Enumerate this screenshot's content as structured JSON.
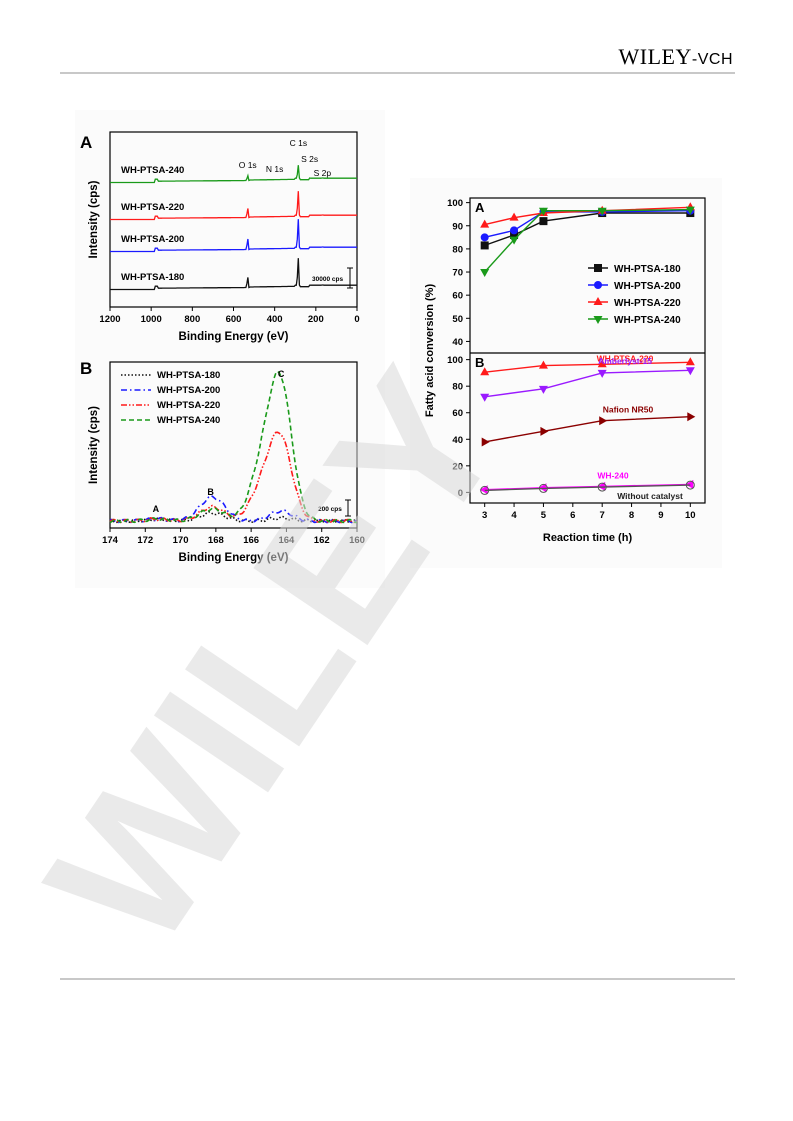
{
  "header": {
    "brand_main": "WILEY",
    "brand_sub": "-VCH"
  },
  "watermark": {
    "text": "WILEY",
    "color": "#d9d9d9"
  },
  "figures": {
    "xps_survey": {
      "panel_letter": "A"
    },
    "xps_s2p": {
      "panel_letter": "B"
    },
    "conversion": {
      "panel_letter": "A"
    },
    "catalysts": {
      "panel_letter": "B"
    }
  },
  "chart_data": [
    {
      "id": "xps_survey",
      "type": "line",
      "xlabel": "Binding Energy (eV)",
      "ylabel": "Intensity (cps)",
      "xlim": [
        1200,
        0
      ],
      "xticks": [
        1200,
        1000,
        800,
        600,
        400,
        200,
        0
      ],
      "reversed_x": true,
      "series": [
        {
          "name": "WH-PTSA-240",
          "color": "#1a9a1a"
        },
        {
          "name": "WH-PTSA-220",
          "color": "#ff1a1a"
        },
        {
          "name": "WH-PTSA-200",
          "color": "#1a1aff"
        },
        {
          "name": "WH-PTSA-180",
          "color": "#111111"
        }
      ],
      "peak_labels": [
        {
          "text": "O 1s",
          "x": 531
        },
        {
          "text": "N 1s",
          "x": 400
        },
        {
          "text": "C 1s",
          "x": 285
        },
        {
          "text": "S 2s",
          "x": 230
        },
        {
          "text": "S 2p",
          "x": 168
        }
      ],
      "scale_bar": "30000 cps"
    },
    {
      "id": "xps_s2p",
      "type": "line",
      "xlabel": "Binding Energy (eV)",
      "ylabel": "Intensity (cps)",
      "xlim": [
        174,
        160
      ],
      "xticks": [
        174,
        172,
        170,
        168,
        166,
        164,
        162,
        160
      ],
      "reversed_x": true,
      "series": [
        {
          "name": "WH-PTSA-180",
          "color": "#111111",
          "dash": "dot"
        },
        {
          "name": "WH-PTSA-200",
          "color": "#1a1aff",
          "dash": "dashdot"
        },
        {
          "name": "WH-PTSA-220",
          "color": "#ff1a1a",
          "dash": "dashdotdot"
        },
        {
          "name": "WH-PTSA-240",
          "color": "#1a9a1a",
          "dash": "dash"
        }
      ],
      "peak_labels": [
        {
          "text": "A",
          "x": 171.4
        },
        {
          "text": "B",
          "x": 168.3
        },
        {
          "text": "C",
          "x": 164.3
        }
      ],
      "scale_bar": "200 cps",
      "legend": "top-left"
    },
    {
      "id": "conversion",
      "type": "line",
      "ylabel": "Fatty acid conversion (%)",
      "ylim": [
        35,
        102
      ],
      "yticks": [
        40,
        50,
        60,
        70,
        80,
        90,
        100
      ],
      "x": [
        3,
        5,
        7,
        10
      ],
      "x_extra": [
        3,
        4,
        5,
        7,
        10
      ],
      "series": [
        {
          "name": "WH-PTSA-180",
          "color": "#111111",
          "marker": "square",
          "x": [
            3,
            4,
            5,
            7,
            10
          ],
          "values": [
            81.5,
            86,
            92,
            95.5,
            95.5
          ]
        },
        {
          "name": "WH-PTSA-200",
          "color": "#1a1aff",
          "marker": "circle",
          "x": [
            3,
            4,
            5,
            7,
            10
          ],
          "values": [
            85,
            88,
            96,
            96,
            96.5
          ]
        },
        {
          "name": "WH-PTSA-220",
          "color": "#ff1a1a",
          "marker": "triangle-up",
          "x": [
            3,
            4,
            5,
            7,
            10
          ],
          "values": [
            90.5,
            93.5,
            95.5,
            96.5,
            98
          ]
        },
        {
          "name": "WH-PTSA-240",
          "color": "#1a9a1a",
          "marker": "triangle-down",
          "x": [
            3,
            4,
            5,
            7,
            10
          ],
          "values": [
            70,
            84,
            96.5,
            96.5,
            97
          ]
        }
      ],
      "legend": "right"
    },
    {
      "id": "catalysts",
      "type": "line",
      "xlabel": "Reaction time (h)",
      "xlim": [
        2.5,
        10.5
      ],
      "xticks": [
        3,
        4,
        5,
        6,
        7,
        8,
        9,
        10
      ],
      "ylim": [
        -8,
        105
      ],
      "yticks": [
        0,
        20,
        40,
        60,
        80,
        100
      ],
      "series": [
        {
          "name": "WH-PTSA-220",
          "color": "#ff1a1a",
          "marker": "triangle-up",
          "x": [
            3,
            5,
            7,
            10
          ],
          "values": [
            90.5,
            95.5,
            96.5,
            98
          ]
        },
        {
          "name": "Amberlyst-15",
          "color": "#9a1aff",
          "marker": "triangle-down",
          "x": [
            3,
            5,
            7,
            10
          ],
          "values": [
            72,
            78,
            90,
            92
          ]
        },
        {
          "name": "Nafion NR50",
          "color": "#8b0000",
          "marker": "triangle-right",
          "x": [
            3,
            5,
            7,
            10
          ],
          "values": [
            38,
            46,
            54,
            57
          ]
        },
        {
          "name": "WH-240",
          "color": "#ff00ff",
          "marker": "triangle-left",
          "x": [
            3,
            5,
            7,
            10
          ],
          "values": [
            2,
            3.5,
            4.5,
            6
          ]
        },
        {
          "name": "Without catalyst",
          "color": "#555555",
          "marker": "circle",
          "x": [
            3,
            5,
            7,
            10
          ],
          "values": [
            1.5,
            3,
            4,
            5.5
          ]
        }
      ]
    }
  ]
}
